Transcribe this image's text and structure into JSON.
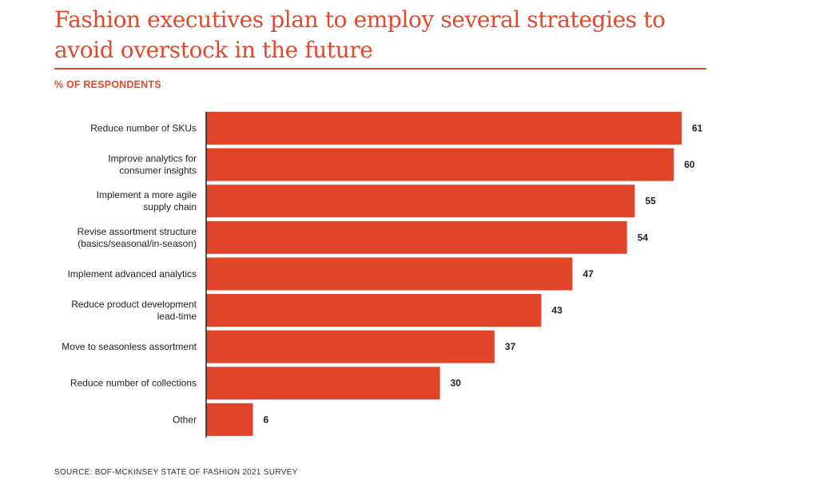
{
  "title": "Fashion executives plan to employ several strategies to avoid overstock in the future",
  "subtitle": "% OF RESPONDENTS",
  "source": "SOURCE: BOF-MCKINSEY STATE OF FASHION 2021 SURVEY",
  "colors": {
    "accent": "#e2492b",
    "bar": "#e0452a",
    "text": "#222222"
  },
  "chart_data": {
    "type": "bar",
    "orientation": "horizontal",
    "categories": [
      [
        "Reduce number of SKUs"
      ],
      [
        "Improve analytics for",
        "consumer insights"
      ],
      [
        "Implement a more agile",
        "supply chain"
      ],
      [
        "Revise assortment structure",
        "(basics/seasonal/in-season)"
      ],
      [
        "Implement advanced analytics"
      ],
      [
        "Reduce product development",
        "lead-time"
      ],
      [
        "Move to seasonless assortment"
      ],
      [
        "Reduce number of collections"
      ],
      [
        "Other"
      ]
    ],
    "values": [
      61,
      60,
      55,
      54,
      47,
      43,
      37,
      30,
      6
    ],
    "data_labels": [
      "61",
      "60",
      "55",
      "54",
      "47",
      "43",
      "37",
      "30",
      "6"
    ],
    "xlim": [
      0,
      61
    ],
    "grid": false,
    "legend": "none"
  }
}
